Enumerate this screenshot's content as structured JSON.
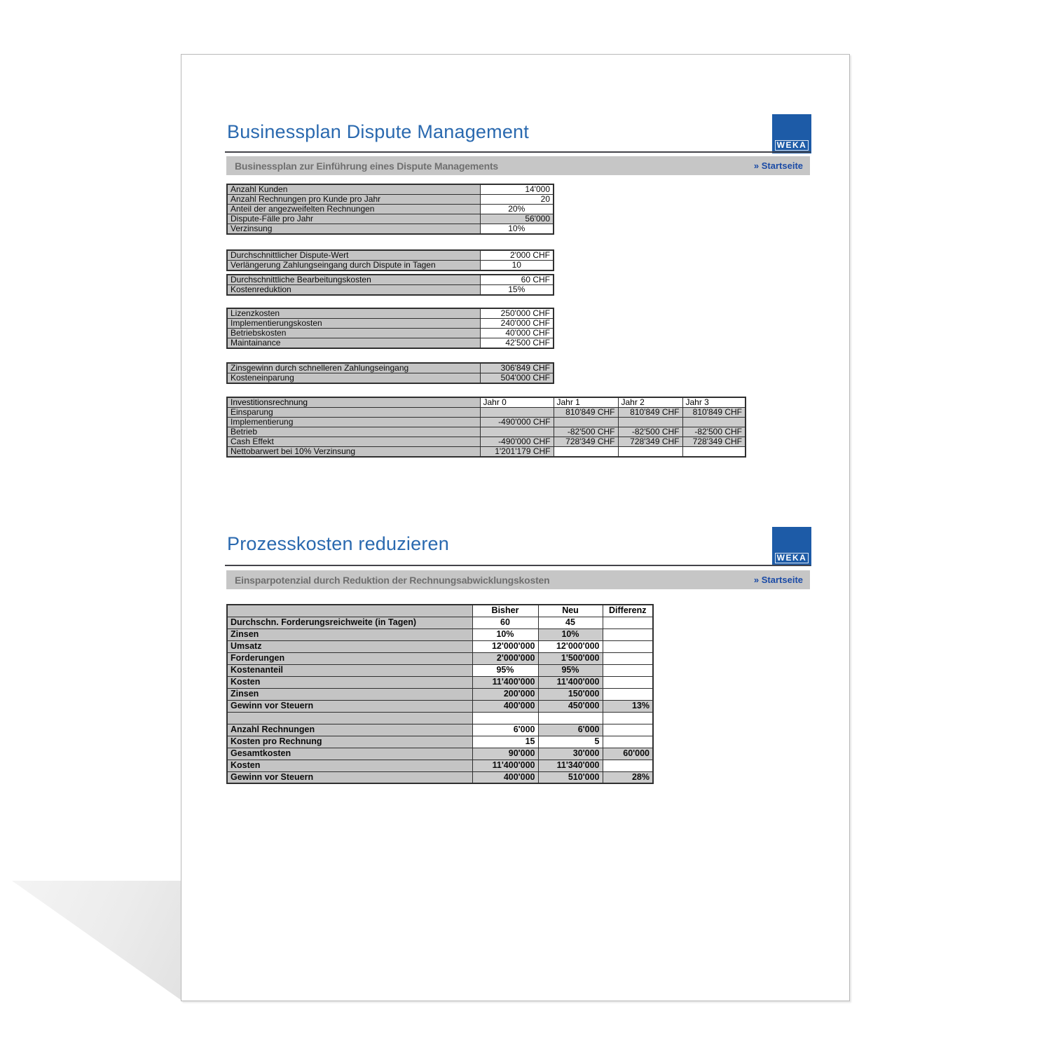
{
  "colors": {
    "title_blue": "#2a69af",
    "logo_blue": "#1d5ba7",
    "link_blue": "#1b4ba6",
    "bar_gray": "#c6c6c6",
    "label_cell_gray": "#c4c4c4",
    "result_cell_gray": "#cccccc",
    "table_border": "#2f2f2f"
  },
  "section1": {
    "title": "Businessplan Dispute Management",
    "logo_text": "WEKA",
    "bar_heading": "Businessplan zur Einführung eines Dispute Managements",
    "home_link": "» Startseite",
    "inputs_a": {
      "rows": [
        {
          "label": "Anzahl Kunden",
          "cells": [
            {
              "v": "14'000",
              "bg": "w",
              "al": "r"
            }
          ]
        },
        {
          "label": "Anzahl Rechnungen pro Kunde pro Jahr",
          "cells": [
            {
              "v": "20",
              "bg": "w",
              "al": "r"
            }
          ]
        },
        {
          "label": "Anteil der angezweifelten Rechnungen",
          "cells": [
            {
              "v": "20%",
              "bg": "w",
              "al": "c"
            }
          ]
        },
        {
          "label": "Dispute-Fälle pro Jahr",
          "cells": [
            {
              "v": "56'000",
              "bg": "g",
              "al": "r"
            }
          ]
        },
        {
          "label": "Verzinsung",
          "cells": [
            {
              "v": "10%",
              "bg": "w",
              "al": "c"
            }
          ]
        }
      ]
    },
    "inputs_b1": {
      "rows": [
        {
          "label": "Durchschnittlicher Dispute-Wert",
          "cells": [
            {
              "v": "2'000 CHF",
              "bg": "w",
              "al": "r"
            }
          ]
        },
        {
          "label": "Verlängerung Zahlungseingang durch Dispute in Tagen",
          "cells": [
            {
              "v": "10",
              "bg": "w",
              "al": "c"
            }
          ]
        }
      ]
    },
    "inputs_b2": {
      "rows": [
        {
          "label": "Durchschnittliche Bearbeitungskosten",
          "cells": [
            {
              "v": "60 CHF",
              "bg": "w",
              "al": "r"
            }
          ]
        },
        {
          "label": "Kostenreduktion",
          "cells": [
            {
              "v": "15%",
              "bg": "w",
              "al": "c"
            }
          ]
        }
      ]
    },
    "costs": {
      "rows": [
        {
          "label": "Lizenzkosten",
          "cells": [
            {
              "v": "250'000 CHF",
              "bg": "w",
              "al": "r"
            }
          ]
        },
        {
          "label": "Implementierungskosten",
          "cells": [
            {
              "v": "240'000 CHF",
              "bg": "w",
              "al": "r"
            }
          ]
        },
        {
          "label": "Betriebskosten",
          "cells": [
            {
              "v": "40'000 CHF",
              "bg": "w",
              "al": "r"
            }
          ]
        },
        {
          "label": "Maintainance",
          "cells": [
            {
              "v": "42'500 CHF",
              "bg": "w",
              "al": "r"
            }
          ]
        }
      ]
    },
    "gains": {
      "rows": [
        {
          "label": "Zinsgewinn durch schnelleren Zahlungseingang",
          "cells": [
            {
              "v": "306'849 CHF",
              "bg": "g",
              "al": "r"
            }
          ]
        },
        {
          "label": "Kosteneinparung",
          "cells": [
            {
              "v": "504'000 CHF",
              "bg": "g",
              "al": "r"
            }
          ]
        }
      ]
    },
    "invest": {
      "headers": [
        "Investitionsrechnung",
        "Jahr 0",
        "Jahr 1",
        "Jahr 2",
        "Jahr 3"
      ],
      "rows": [
        {
          "label": "Einsparung",
          "cells": [
            {
              "v": "",
              "bg": "g",
              "al": "r"
            },
            {
              "v": "810'849 CHF",
              "bg": "g",
              "al": "r"
            },
            {
              "v": "810'849 CHF",
              "bg": "g",
              "al": "r"
            },
            {
              "v": "810'849 CHF",
              "bg": "g",
              "al": "r"
            }
          ]
        },
        {
          "label": "Implementierung",
          "cells": [
            {
              "v": "-490'000 CHF",
              "bg": "g",
              "al": "r"
            },
            {
              "v": "",
              "bg": "g",
              "al": "r"
            },
            {
              "v": "",
              "bg": "g",
              "al": "r"
            },
            {
              "v": "",
              "bg": "g",
              "al": "r"
            }
          ]
        },
        {
          "label": "Betrieb",
          "cells": [
            {
              "v": "",
              "bg": "g",
              "al": "r"
            },
            {
              "v": "-82'500 CHF",
              "bg": "g",
              "al": "r"
            },
            {
              "v": "-82'500 CHF",
              "bg": "g",
              "al": "r"
            },
            {
              "v": "-82'500 CHF",
              "bg": "g",
              "al": "r"
            }
          ]
        },
        {
          "label": "Cash Effekt",
          "cells": [
            {
              "v": "-490'000 CHF",
              "bg": "g",
              "al": "r"
            },
            {
              "v": "728'349 CHF",
              "bg": "g",
              "al": "r"
            },
            {
              "v": "728'349 CHF",
              "bg": "g",
              "al": "r"
            },
            {
              "v": "728'349 CHF",
              "bg": "g",
              "al": "r"
            }
          ]
        },
        {
          "label": "Nettobarwert bei 10% Verzinsung",
          "cells": [
            {
              "v": "1'201'179 CHF",
              "bg": "g",
              "al": "r"
            },
            {
              "v": "",
              "bg": "w",
              "al": "r"
            },
            {
              "v": "",
              "bg": "w",
              "al": "r"
            },
            {
              "v": "",
              "bg": "w",
              "al": "r"
            }
          ]
        }
      ]
    }
  },
  "section2": {
    "title": "Prozesskosten reduzieren",
    "logo_text": "WEKA",
    "bar_heading": "Einsparpotenzial durch Reduktion der Rechnungsabwicklungskosten",
    "home_link": "» Startseite",
    "table": {
      "headers": [
        "",
        "Bisher",
        "Neu",
        "Differenz"
      ],
      "rows": [
        {
          "label": "Durchschn. Forderungsreichweite (in Tagen)",
          "cells": [
            {
              "v": "60",
              "bg": "w",
              "al": "c"
            },
            {
              "v": "45",
              "bg": "w",
              "al": "c"
            },
            {
              "v": "",
              "bg": "w",
              "al": "r"
            }
          ]
        },
        {
          "label": "Zinsen",
          "cells": [
            {
              "v": "10%",
              "bg": "w",
              "al": "c"
            },
            {
              "v": "10%",
              "bg": "g",
              "al": "c"
            },
            {
              "v": "",
              "bg": "w",
              "al": "r"
            }
          ]
        },
        {
          "label": "Umsatz",
          "cells": [
            {
              "v": "12'000'000",
              "bg": "w",
              "al": "r"
            },
            {
              "v": "12'000'000",
              "bg": "w",
              "al": "r"
            },
            {
              "v": "",
              "bg": "w",
              "al": "r"
            }
          ]
        },
        {
          "label": "Forderungen",
          "cells": [
            {
              "v": "2'000'000",
              "bg": "g",
              "al": "r"
            },
            {
              "v": "1'500'000",
              "bg": "g",
              "al": "r"
            },
            {
              "v": "",
              "bg": "w",
              "al": "r"
            }
          ]
        },
        {
          "label": "Kostenanteil",
          "cells": [
            {
              "v": "95%",
              "bg": "w",
              "al": "c"
            },
            {
              "v": "95%",
              "bg": "g",
              "al": "c"
            },
            {
              "v": "",
              "bg": "w",
              "al": "r"
            }
          ]
        },
        {
          "label": "Kosten",
          "cells": [
            {
              "v": "11'400'000",
              "bg": "g",
              "al": "r"
            },
            {
              "v": "11'400'000",
              "bg": "g",
              "al": "r"
            },
            {
              "v": "",
              "bg": "w",
              "al": "r"
            }
          ]
        },
        {
          "label": "Zinsen",
          "cells": [
            {
              "v": "200'000",
              "bg": "g",
              "al": "r"
            },
            {
              "v": "150'000",
              "bg": "g",
              "al": "r"
            },
            {
              "v": "",
              "bg": "w",
              "al": "r"
            }
          ]
        },
        {
          "label": "Gewinn vor Steuern",
          "cells": [
            {
              "v": "400'000",
              "bg": "g",
              "al": "r"
            },
            {
              "v": "450'000",
              "bg": "g",
              "al": "r"
            },
            {
              "v": "13%",
              "bg": "g",
              "al": "r"
            }
          ]
        },
        {
          "label": "",
          "cells": [
            {
              "v": "",
              "bg": "w",
              "al": "r"
            },
            {
              "v": "",
              "bg": "w",
              "al": "r"
            },
            {
              "v": "",
              "bg": "w",
              "al": "r"
            }
          ]
        },
        {
          "label": "Anzahl Rechnungen",
          "cells": [
            {
              "v": "6'000",
              "bg": "w",
              "al": "r"
            },
            {
              "v": "6'000",
              "bg": "g",
              "al": "r"
            },
            {
              "v": "",
              "bg": "w",
              "al": "r"
            }
          ]
        },
        {
          "label": "Kosten pro Rechnung",
          "cells": [
            {
              "v": "15",
              "bg": "w",
              "al": "r"
            },
            {
              "v": "5",
              "bg": "w",
              "al": "r"
            },
            {
              "v": "",
              "bg": "w",
              "al": "r"
            }
          ]
        },
        {
          "label": "Gesamtkosten",
          "cells": [
            {
              "v": "90'000",
              "bg": "g",
              "al": "r"
            },
            {
              "v": "30'000",
              "bg": "g",
              "al": "r"
            },
            {
              "v": "60'000",
              "bg": "g",
              "al": "r"
            }
          ]
        },
        {
          "label": "Kosten",
          "cells": [
            {
              "v": "11'400'000",
              "bg": "g",
              "al": "r"
            },
            {
              "v": "11'340'000",
              "bg": "g",
              "al": "r"
            },
            {
              "v": "",
              "bg": "w",
              "al": "r"
            }
          ]
        },
        {
          "label": "Gewinn vor Steuern",
          "cells": [
            {
              "v": "400'000",
              "bg": "g",
              "al": "r"
            },
            {
              "v": "510'000",
              "bg": "g",
              "al": "r"
            },
            {
              "v": "28%",
              "bg": "g",
              "al": "r"
            }
          ]
        }
      ]
    }
  }
}
